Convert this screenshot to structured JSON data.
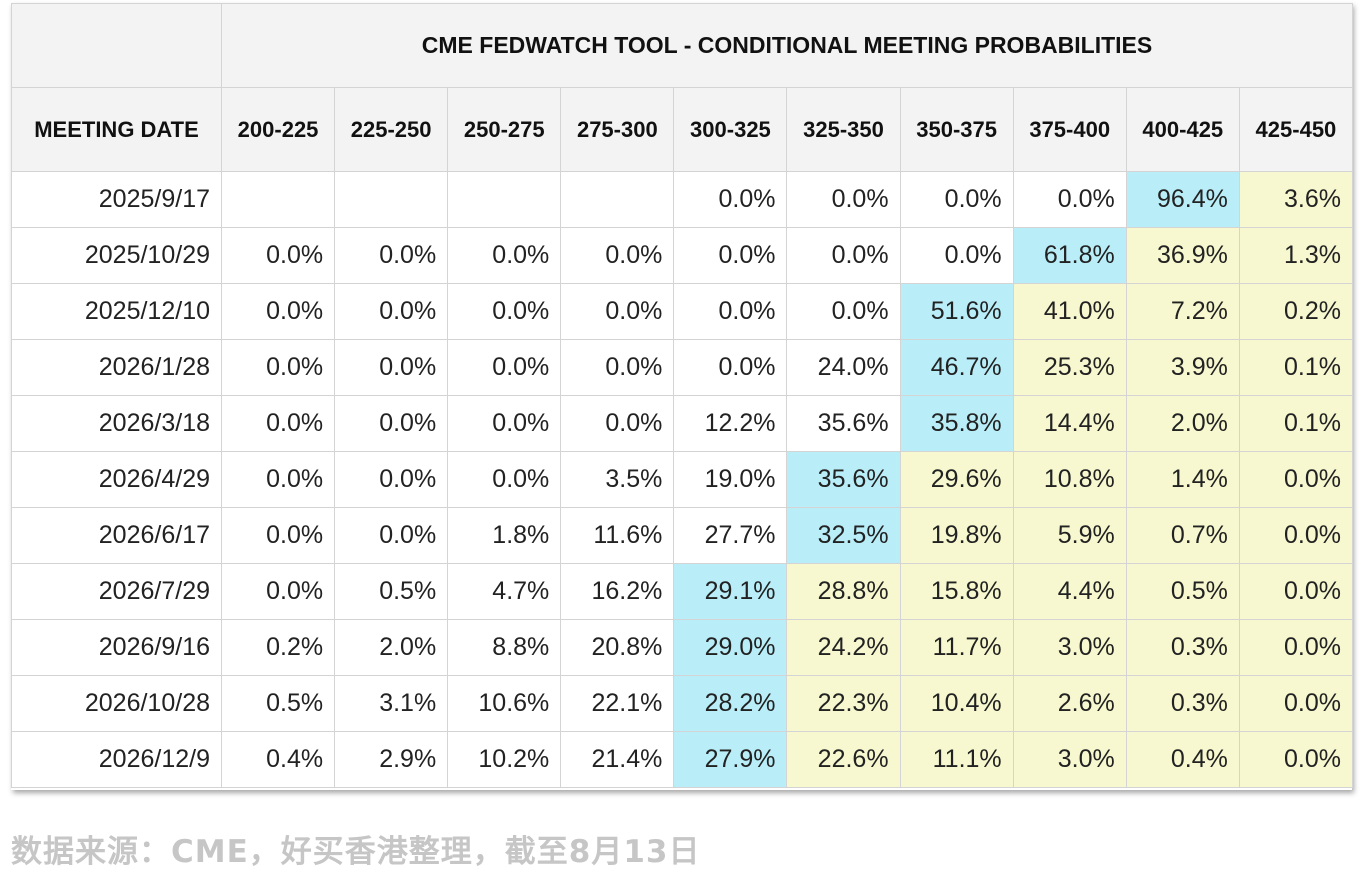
{
  "chart_data": {
    "type": "table",
    "title": "CME FEDWATCH TOOL - CONDITIONAL MEETING PROBABILITIES",
    "row_header": "MEETING DATE",
    "columns": [
      "200-225",
      "225-250",
      "250-275",
      "275-300",
      "300-325",
      "325-350",
      "350-375",
      "375-400",
      "400-425",
      "425-450"
    ],
    "rows": [
      {
        "date": "2025/9/17",
        "values": [
          "",
          "",
          "",
          "",
          "0.0%",
          "0.0%",
          "0.0%",
          "0.0%",
          "96.4%",
          "3.6%"
        ]
      },
      {
        "date": "2025/10/29",
        "values": [
          "0.0%",
          "0.0%",
          "0.0%",
          "0.0%",
          "0.0%",
          "0.0%",
          "0.0%",
          "61.8%",
          "36.9%",
          "1.3%"
        ]
      },
      {
        "date": "2025/12/10",
        "values": [
          "0.0%",
          "0.0%",
          "0.0%",
          "0.0%",
          "0.0%",
          "0.0%",
          "51.6%",
          "41.0%",
          "7.2%",
          "0.2%"
        ]
      },
      {
        "date": "2026/1/28",
        "values": [
          "0.0%",
          "0.0%",
          "0.0%",
          "0.0%",
          "0.0%",
          "24.0%",
          "46.7%",
          "25.3%",
          "3.9%",
          "0.1%"
        ]
      },
      {
        "date": "2026/3/18",
        "values": [
          "0.0%",
          "0.0%",
          "0.0%",
          "0.0%",
          "12.2%",
          "35.6%",
          "35.8%",
          "14.4%",
          "2.0%",
          "0.1%"
        ]
      },
      {
        "date": "2026/4/29",
        "values": [
          "0.0%",
          "0.0%",
          "0.0%",
          "3.5%",
          "19.0%",
          "35.6%",
          "29.6%",
          "10.8%",
          "1.4%",
          "0.0%"
        ]
      },
      {
        "date": "2026/6/17",
        "values": [
          "0.0%",
          "0.0%",
          "1.8%",
          "11.6%",
          "27.7%",
          "32.5%",
          "19.8%",
          "5.9%",
          "0.7%",
          "0.0%"
        ]
      },
      {
        "date": "2026/7/29",
        "values": [
          "0.0%",
          "0.5%",
          "4.7%",
          "16.2%",
          "29.1%",
          "28.8%",
          "15.8%",
          "4.4%",
          "0.5%",
          "0.0%"
        ]
      },
      {
        "date": "2026/9/16",
        "values": [
          "0.2%",
          "2.0%",
          "8.8%",
          "20.8%",
          "29.0%",
          "24.2%",
          "11.7%",
          "3.0%",
          "0.3%",
          "0.0%"
        ]
      },
      {
        "date": "2026/10/28",
        "values": [
          "0.5%",
          "3.1%",
          "10.6%",
          "22.1%",
          "28.2%",
          "22.3%",
          "10.4%",
          "2.6%",
          "0.3%",
          "0.0%"
        ]
      },
      {
        "date": "2026/12/9",
        "values": [
          "0.4%",
          "2.9%",
          "10.2%",
          "21.4%",
          "27.9%",
          "22.6%",
          "11.1%",
          "3.0%",
          "0.4%",
          "0.0%"
        ]
      }
    ],
    "highlight_cols": [
      8,
      7,
      6,
      6,
      6,
      5,
      5,
      4,
      4,
      4,
      4
    ],
    "colors": {
      "highlight": "#b9eef9",
      "above": "#f7f8cf",
      "default": "#ffffff",
      "header_bg": "#f3f3f3"
    }
  },
  "source": "数据来源：CME，好买香港整理，截至8月13日"
}
